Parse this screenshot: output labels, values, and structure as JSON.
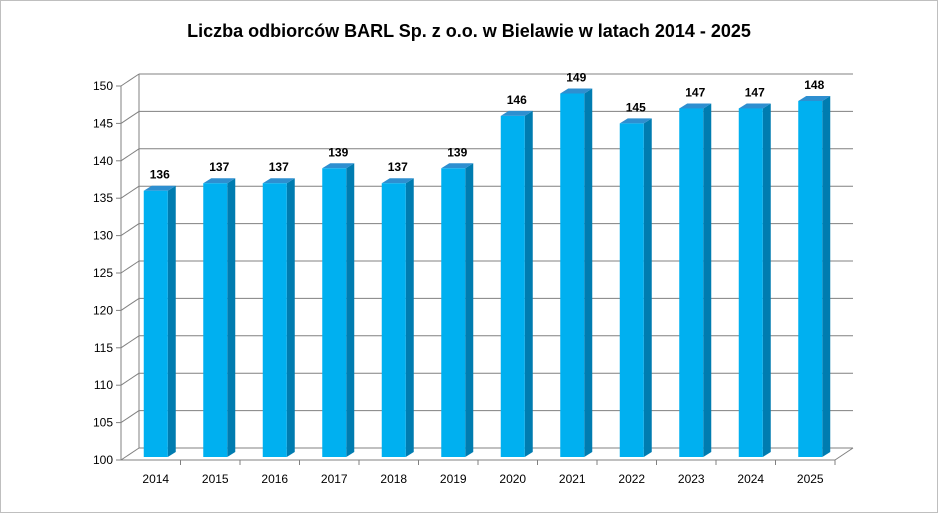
{
  "chart_data": {
    "type": "bar",
    "title": "Liczba odbiorców BARL Sp. z o.o. w Bielawie w latach 2014 - 2025",
    "categories": [
      "2014",
      "2015",
      "2016",
      "2017",
      "2018",
      "2019",
      "2020",
      "2021",
      "2022",
      "2023",
      "2024",
      "2025"
    ],
    "values": [
      136,
      137,
      137,
      139,
      137,
      139,
      146,
      149,
      145,
      147,
      147,
      148
    ],
    "data_labels": [
      "136",
      "137",
      "137",
      "139",
      "137",
      "139",
      "146",
      "149",
      "145",
      "147",
      "147",
      "148"
    ],
    "ylim": [
      100,
      150
    ],
    "yticks": [
      "100",
      "105",
      "110",
      "115",
      "120",
      "125",
      "130",
      "135",
      "140",
      "145",
      "150"
    ],
    "grid": true,
    "bar_style": "3d-column",
    "colors": {
      "bar_front": "#00B0F0",
      "bar_side": "#007CB0",
      "bar_top": "#2E8FD0",
      "grid": "#808080"
    }
  }
}
